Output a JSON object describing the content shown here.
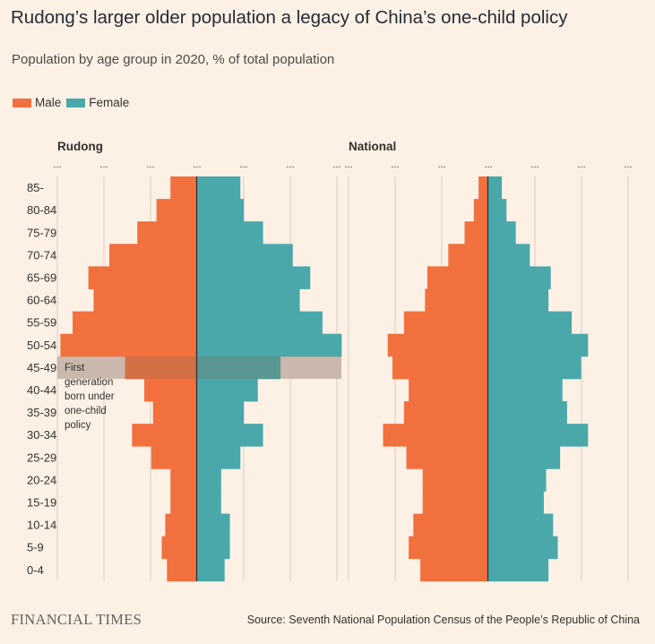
{
  "header": {
    "title": "Rudong’s larger older population a legacy of China’s one-child policy",
    "subtitle": "Population by age group in 2020, % of total population"
  },
  "legend": [
    {
      "label": "Male",
      "color": "#f2703e"
    },
    {
      "label": "Female",
      "color": "#4aa8aa"
    }
  ],
  "colors": {
    "male": "#f2703e",
    "female": "#4aa8aa",
    "grid": "#d6cdc4",
    "highlight_band": "#e2d6cc",
    "axis": "#262a33"
  },
  "chart_data": [
    {
      "type": "bar",
      "orientation": "horizontal-pyramid",
      "title": "Rudong",
      "categories": [
        "85-",
        "80-84",
        "75-79",
        "70-74",
        "65-69",
        "60-64",
        "55-59",
        "50-54",
        "45-49",
        "40-44",
        "35-39",
        "30-34",
        "25-29",
        "20-24",
        "15-19",
        "10-14",
        "5-9",
        "0-4"
      ],
      "series": [
        {
          "name": "Male",
          "values": [
            1.5,
            2.3,
            3.4,
            5.0,
            6.2,
            5.9,
            7.1,
            7.8,
            4.1,
            3.0,
            2.5,
            3.7,
            2.6,
            1.5,
            1.5,
            1.8,
            2.0,
            1.7
          ]
        },
        {
          "name": "Female",
          "values": [
            2.5,
            2.7,
            3.8,
            5.5,
            6.5,
            5.9,
            7.2,
            8.3,
            4.8,
            3.5,
            2.7,
            3.8,
            2.5,
            1.4,
            1.4,
            1.9,
            1.9,
            1.6
          ]
        }
      ],
      "xlim": [
        -8,
        8
      ],
      "tick_labels": [
        "...",
        "...",
        "...",
        "...",
        "...",
        "...",
        "..."
      ],
      "annotation": {
        "category": "45-49",
        "text": [
          "First",
          "generation",
          "born under",
          "one-child",
          "policy"
        ]
      }
    },
    {
      "type": "bar",
      "orientation": "horizontal-pyramid",
      "title": "National",
      "categories": [
        "85-",
        "80-84",
        "75-79",
        "70-74",
        "65-69",
        "60-64",
        "55-59",
        "50-54",
        "45-49",
        "40-44",
        "35-39",
        "30-34",
        "25-29",
        "20-24",
        "15-19",
        "10-14",
        "5-9",
        "0-4"
      ],
      "series": [
        {
          "name": "Male",
          "values": [
            0.4,
            0.6,
            1.0,
            1.7,
            2.6,
            2.7,
            3.6,
            4.3,
            4.1,
            3.4,
            3.6,
            4.5,
            3.5,
            2.8,
            2.8,
            3.2,
            3.4,
            2.9
          ]
        },
        {
          "name": "Female",
          "values": [
            0.6,
            0.8,
            1.2,
            1.8,
            2.7,
            2.6,
            3.6,
            4.3,
            4.0,
            3.2,
            3.4,
            4.3,
            3.1,
            2.5,
            2.4,
            2.8,
            3.0,
            2.6
          ]
        }
      ],
      "xlim": [
        -6,
        6
      ],
      "tick_labels": [
        "...",
        "...",
        "...",
        "...",
        "...",
        "...",
        "..."
      ]
    }
  ],
  "footer": {
    "brand": "FINANCIAL TIMES",
    "source": "Source: Seventh National Population Census of the People’s Republic of China"
  }
}
